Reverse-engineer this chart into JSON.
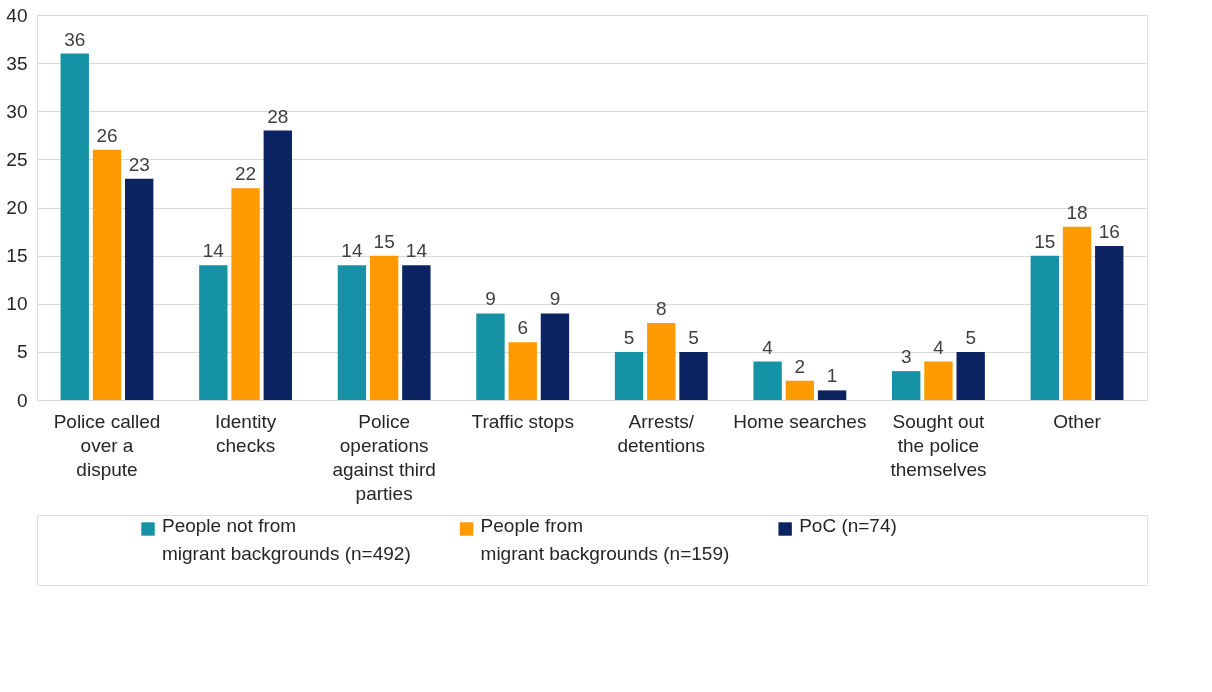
{
  "chart_data": {
    "type": "bar",
    "categories": [
      "Police called over a dispute",
      "Identity checks",
      "Police operations against third parties",
      "Traffic stops",
      "Arrests/ detentions",
      "Home searches",
      "Sought out the police themselves",
      "Other"
    ],
    "series": [
      {
        "name": "People not from migrant backgrounds (n=492)",
        "color": "#1592a5",
        "values": [
          36,
          14,
          14,
          9,
          5,
          4,
          3,
          15
        ]
      },
      {
        "name": "People from migrant backgrounds (n=159)",
        "color": "#ff9b00",
        "values": [
          26,
          22,
          15,
          6,
          8,
          2,
          4,
          18
        ]
      },
      {
        "name": "PoC (n=74)",
        "color": "#0b2361",
        "values": [
          23,
          28,
          14,
          9,
          5,
          1,
          5,
          16
        ]
      }
    ],
    "ylim": [
      0,
      40
    ],
    "yticks": [
      0,
      5,
      10,
      15,
      20,
      25,
      30,
      35,
      40
    ],
    "grid": "y",
    "legend": "bottom",
    "data_labels": true
  }
}
